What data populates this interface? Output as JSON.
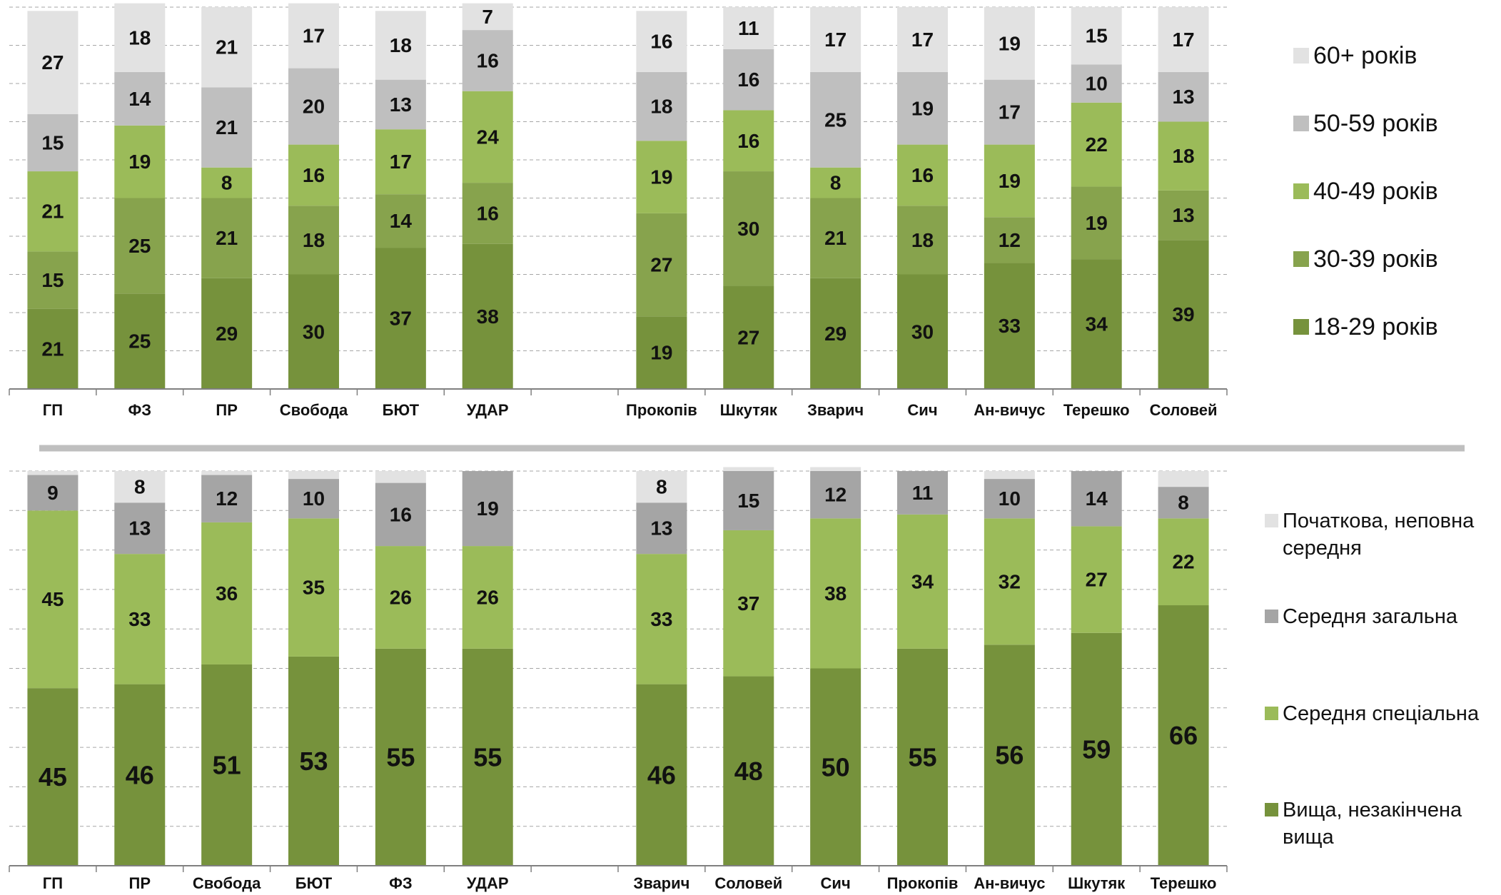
{
  "colors": {
    "c1": "#e2e2e2",
    "c2": "#bfbfbf",
    "c3": "#9bbb59",
    "c4": "#87a34d",
    "c5": "#76923c",
    "ed_c1": "#e2e2e2",
    "ed_c2": "#a5a5a5",
    "ed_c3": "#9bbb59",
    "ed_c4": "#76923c",
    "divider": "#bfbfbf"
  },
  "chart_data": [
    {
      "type": "bar",
      "stacked": true,
      "categories": [
        "ГП",
        "ФЗ",
        "ПР",
        "Свобода",
        "БЮТ",
        "УДАР",
        "",
        "Прокопів",
        "Шкутяк",
        "Зварич",
        "Сич",
        "Ан-вичус",
        "Терешко",
        "Соловей"
      ],
      "series": [
        {
          "name": "18-29 років",
          "values": [
            21,
            25,
            29,
            30,
            37,
            38,
            null,
            19,
            27,
            29,
            30,
            33,
            34,
            39
          ]
        },
        {
          "name": "30-39 років",
          "values": [
            15,
            25,
            21,
            18,
            14,
            16,
            null,
            27,
            30,
            21,
            18,
            12,
            19,
            13
          ]
        },
        {
          "name": "40-49 років",
          "values": [
            21,
            19,
            8,
            16,
            17,
            24,
            null,
            19,
            16,
            8,
            16,
            19,
            22,
            18
          ]
        },
        {
          "name": "50-59 років",
          "values": [
            15,
            14,
            21,
            20,
            13,
            16,
            null,
            18,
            16,
            25,
            19,
            17,
            10,
            13
          ]
        },
        {
          "name": "60+ років",
          "values": [
            27,
            18,
            21,
            17,
            18,
            7,
            null,
            16,
            11,
            17,
            17,
            19,
            15,
            17
          ]
        }
      ],
      "ylim": [
        0,
        100
      ],
      "grid": true,
      "legend": "right"
    },
    {
      "type": "bar",
      "stacked": true,
      "categories": [
        "ГП",
        "ПР",
        "Свобода",
        "БЮТ",
        "ФЗ",
        "УДАР",
        "",
        "Зварич",
        "Соловей",
        "Сич",
        "Прокопів",
        "Ан-вичус",
        "Шкутяк",
        "Терешко"
      ],
      "series": [
        {
          "name": "Вища, незакінчена вища",
          "values": [
            45,
            46,
            51,
            53,
            55,
            55,
            null,
            46,
            48,
            50,
            55,
            56,
            59,
            66
          ]
        },
        {
          "name": "Середня спеціальна",
          "values": [
            45,
            33,
            36,
            35,
            26,
            26,
            null,
            33,
            37,
            38,
            34,
            32,
            27,
            22
          ]
        },
        {
          "name": "Середня загальна",
          "values": [
            9,
            13,
            12,
            10,
            16,
            19,
            null,
            13,
            15,
            12,
            11,
            10,
            14,
            8
          ]
        },
        {
          "name": "Початкова, неповна середня",
          "values": [
            1,
            8,
            1,
            2,
            3,
            0,
            null,
            8,
            1,
            1,
            0,
            2,
            0,
            4
          ]
        }
      ],
      "value_labels_min": 5,
      "ylim": [
        0,
        100
      ],
      "grid": true,
      "legend": "right"
    }
  ],
  "legend_top": [
    {
      "label": "60+ років",
      "swatch": "c1"
    },
    {
      "label": "50-59 років",
      "swatch": "c2"
    },
    {
      "label": "40-49 років",
      "swatch": "c3"
    },
    {
      "label": "30-39 років",
      "swatch": "c4"
    },
    {
      "label": "18-29 років",
      "swatch": "c5"
    }
  ],
  "legend_bottom": [
    {
      "label": [
        "Початкова, неповна",
        "середня"
      ],
      "swatch": "ed_c1"
    },
    {
      "label": [
        "Середня загальна"
      ],
      "swatch": "ed_c2"
    },
    {
      "label": [
        "Середня спеціальна"
      ],
      "swatch": "ed_c3"
    },
    {
      "label": [
        "Вища, незакінчена",
        "вища"
      ],
      "swatch": "ed_c4"
    }
  ]
}
